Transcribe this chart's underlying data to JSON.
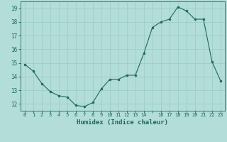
{
  "x": [
    0,
    1,
    2,
    3,
    4,
    5,
    6,
    7,
    8,
    9,
    10,
    11,
    12,
    13,
    14,
    15,
    16,
    17,
    18,
    19,
    20,
    21,
    22,
    23
  ],
  "y": [
    14.9,
    14.4,
    13.5,
    12.9,
    12.6,
    12.5,
    11.9,
    11.8,
    12.1,
    13.1,
    13.8,
    13.8,
    14.1,
    14.1,
    15.7,
    17.6,
    18.0,
    18.2,
    19.1,
    18.8,
    18.2,
    18.2,
    15.1,
    13.7
  ],
  "line_color": "#1a6b5a",
  "bg_color": "#b2ddd8",
  "grid_color": "#9ececa",
  "xlabel": "Humidex (Indice chaleur)",
  "ylim": [
    11.5,
    19.5
  ],
  "xlim": [
    -0.5,
    23.5
  ],
  "yticks": [
    12,
    13,
    14,
    15,
    16,
    17,
    18,
    19
  ],
  "xtick_labels": [
    "0",
    "1",
    "2",
    "3",
    "4",
    "5",
    "6",
    "7",
    "8",
    "9",
    "10",
    "11",
    "12",
    "13",
    "14",
    "",
    "16",
    "17",
    "18",
    "19",
    "20",
    "21",
    "22",
    "23"
  ]
}
